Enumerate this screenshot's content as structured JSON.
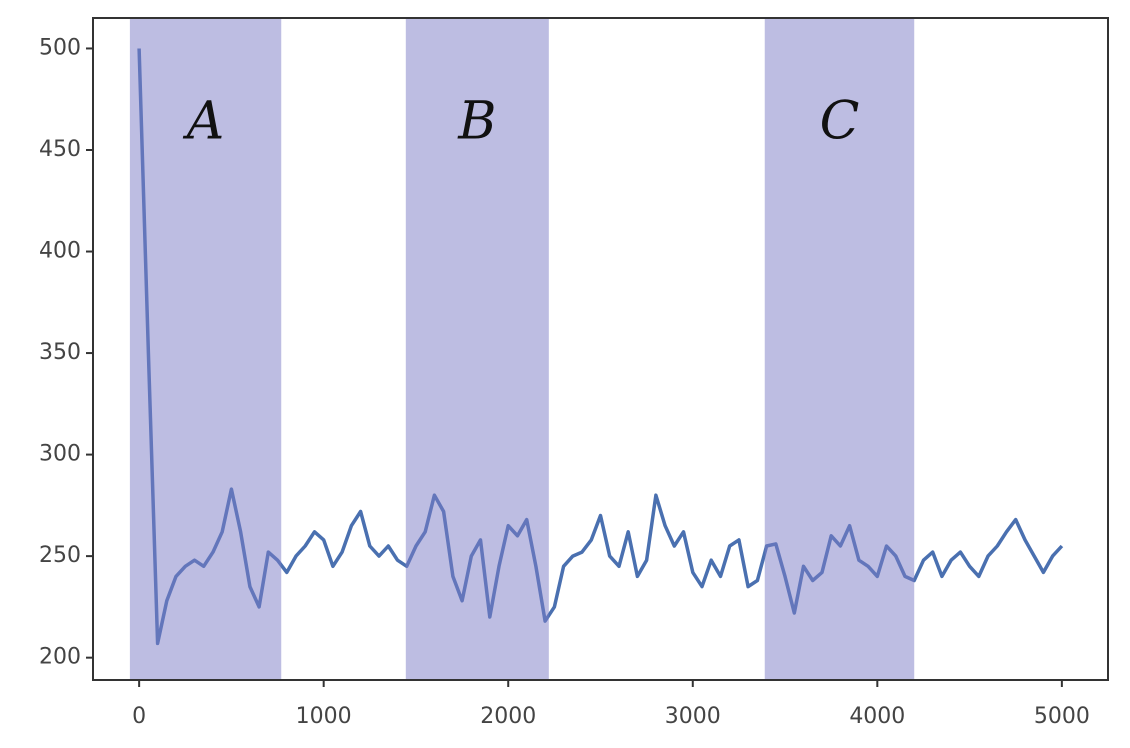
{
  "chart_data": {
    "type": "line",
    "x": [
      0,
      50,
      100,
      150,
      200,
      250,
      300,
      350,
      400,
      450,
      500,
      550,
      600,
      650,
      700,
      750,
      800,
      850,
      900,
      950,
      1000,
      1050,
      1100,
      1150,
      1200,
      1250,
      1300,
      1350,
      1400,
      1450,
      1500,
      1550,
      1600,
      1650,
      1700,
      1750,
      1800,
      1850,
      1900,
      1950,
      2000,
      2050,
      2100,
      2150,
      2200,
      2250,
      2300,
      2350,
      2400,
      2450,
      2500,
      2550,
      2600,
      2650,
      2700,
      2750,
      2800,
      2850,
      2900,
      2950,
      3000,
      3050,
      3100,
      3150,
      3200,
      3250,
      3300,
      3350,
      3400,
      3450,
      3500,
      3550,
      3600,
      3650,
      3700,
      3750,
      3800,
      3850,
      3900,
      3950,
      4000,
      4050,
      4100,
      4150,
      4200,
      4250,
      4300,
      4350,
      4400,
      4450,
      4500,
      4550,
      4600,
      4650,
      4700,
      4750,
      4800,
      4850,
      4900,
      4950,
      5000
    ],
    "series": [
      {
        "color": "#4a70b0",
        "values": [
          500,
          350,
          207,
          228,
          240,
          245,
          248,
          245,
          252,
          262,
          283,
          262,
          235,
          225,
          252,
          248,
          242,
          250,
          255,
          262,
          258,
          245,
          252,
          265,
          272,
          255,
          250,
          255,
          248,
          245,
          255,
          262,
          280,
          272,
          240,
          228,
          250,
          258,
          220,
          245,
          265,
          260,
          268,
          245,
          218,
          225,
          245,
          250,
          252,
          258,
          270,
          250,
          245,
          262,
          240,
          248,
          280,
          265,
          255,
          262,
          242,
          235,
          248,
          240,
          255,
          258,
          235,
          238,
          255,
          256,
          240,
          222,
          245,
          238,
          242,
          260,
          255,
          265,
          248,
          245,
          240,
          255,
          250,
          240,
          238,
          248,
          252,
          240,
          248,
          252,
          245,
          240,
          250,
          255,
          262,
          268,
          258,
          250,
          242,
          250,
          255
        ]
      }
    ],
    "spans": [
      {
        "label": "A",
        "x0": -50,
        "x1": 770
      },
      {
        "label": "B",
        "x0": 1445,
        "x1": 2220
      },
      {
        "label": "C",
        "x0": 3390,
        "x1": 4200
      }
    ],
    "span_color": "#7b7cc6",
    "xlim": [
      -250,
      5250
    ],
    "ylim": [
      189,
      515
    ],
    "xticks": [
      0,
      1000,
      2000,
      3000,
      4000,
      5000
    ],
    "yticks": [
      200,
      250,
      300,
      350,
      400,
      450,
      500
    ],
    "grid": false
  }
}
